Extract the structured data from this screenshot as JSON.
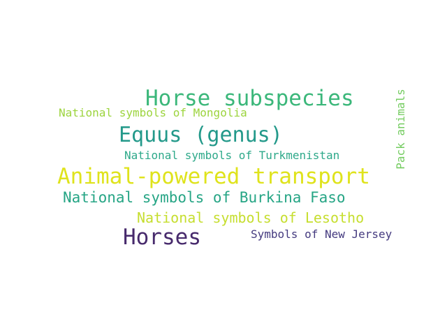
{
  "words": [
    {
      "text": "Horse subspecies",
      "color": "#3bb77a"
    },
    {
      "text": "National symbols of Mongolia",
      "color": "#9cd43d"
    },
    {
      "text": "Equus (genus)",
      "color": "#23998a"
    },
    {
      "text": "National symbols of Turkmenistan",
      "color": "#2ea98a"
    },
    {
      "text": "Animal-powered transport",
      "color": "#dfe31c"
    },
    {
      "text": "National symbols of Burkina Faso",
      "color": "#26a585"
    },
    {
      "text": "National symbols of Lesotho",
      "color": "#c6de2f"
    },
    {
      "text": "Horses",
      "color": "#472a6c"
    },
    {
      "text": "Symbols of New Jersey",
      "color": "#443a7f"
    },
    {
      "text": "Pack animals",
      "color": "#74cc60"
    }
  ]
}
